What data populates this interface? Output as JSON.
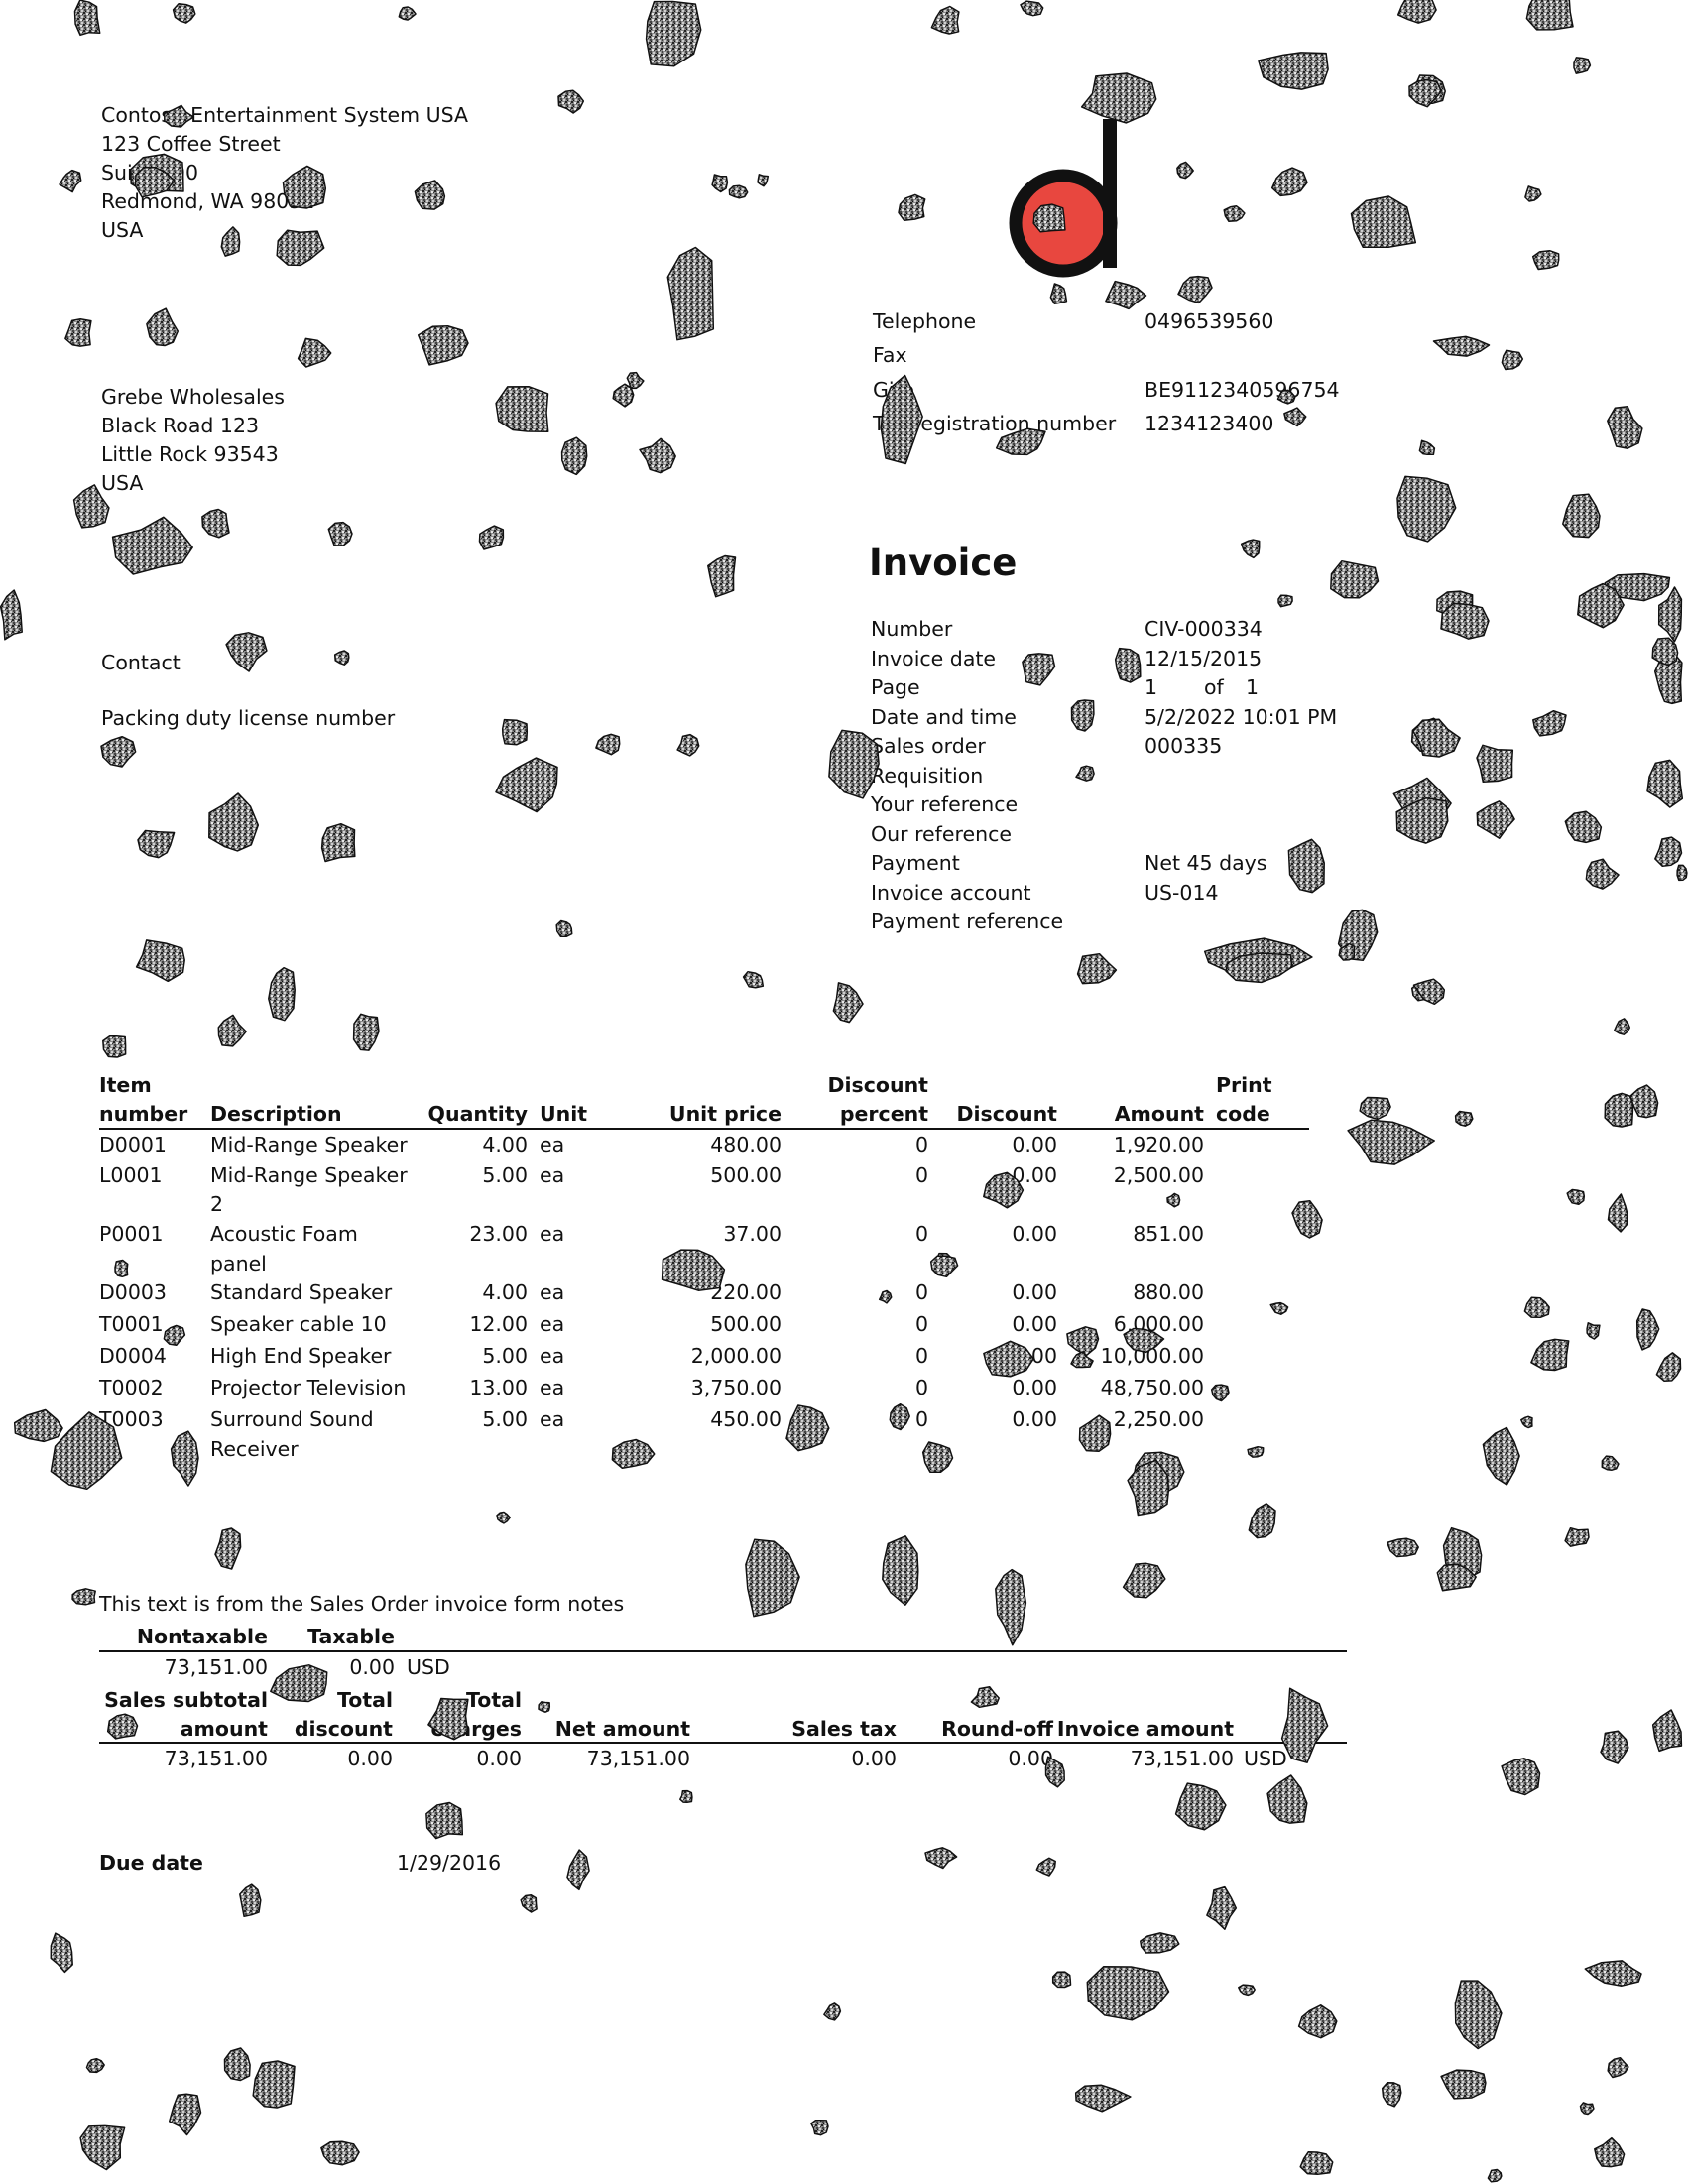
{
  "company": {
    "lines": [
      "Contoso Entertainment System USA",
      "123 Coffee Street",
      "Suite 300",
      "Redmond, WA 98052",
      "USA"
    ]
  },
  "customer": {
    "lines": [
      "Grebe Wholesales",
      "Black Road 123",
      "Little Rock 93543",
      "USA"
    ]
  },
  "contact_label": "Contact",
  "license_label": "Packing duty license number",
  "logo": {
    "name": "company-logo",
    "accent": "#e8473f",
    "stroke": "#111111"
  },
  "company_contact": {
    "labels": [
      "Telephone",
      "Fax",
      "Giro",
      "Tax registration number"
    ],
    "values": [
      "0496539560",
      "",
      "BE9112340596754",
      "1234123400"
    ]
  },
  "invoice": {
    "title": "Invoice",
    "labels": [
      "Number",
      "Invoice date",
      "Page",
      "Date and time",
      "Sales order",
      "Requisition",
      "Your reference",
      "Our reference",
      "Payment",
      "Invoice account",
      "Payment reference"
    ],
    "values": [
      "CIV-000334",
      "12/15/2015",
      "",
      "5/2/2022 10:01 PM",
      "000335",
      "",
      "",
      "",
      "Net 45 days",
      "US-014",
      ""
    ],
    "page_current": "1",
    "page_of": "of",
    "page_total": "1"
  },
  "lines_table": {
    "headers": {
      "item_1": "Item",
      "item_2": "number",
      "description": "Description",
      "quantity": "Quantity",
      "unit": "Unit",
      "unit_price": "Unit price",
      "disc_pct_1": "Discount",
      "disc_pct_2": "percent",
      "discount": "Discount",
      "amount": "Amount",
      "print_1": "Print",
      "print_2": "code"
    },
    "rows": [
      {
        "item": "D0001",
        "desc": "Mid-Range Speaker",
        "desc2": "",
        "qty": "4.00",
        "unit": "ea",
        "price": "480.00",
        "pct": "0",
        "disc": "0.00",
        "amount": "1,920.00"
      },
      {
        "item": "L0001",
        "desc": "Mid-Range Speaker",
        "desc2": "2",
        "qty": "5.00",
        "unit": "ea",
        "price": "500.00",
        "pct": "0",
        "disc": "0.00",
        "amount": "2,500.00"
      },
      {
        "item": "P0001",
        "desc": "Acoustic Foam",
        "desc2": "panel",
        "qty": "23.00",
        "unit": "ea",
        "price": "37.00",
        "pct": "0",
        "disc": "0.00",
        "amount": "851.00"
      },
      {
        "item": "D0003",
        "desc": "Standard Speaker",
        "desc2": "",
        "qty": "4.00",
        "unit": "ea",
        "price": "220.00",
        "pct": "0",
        "disc": "0.00",
        "amount": "880.00"
      },
      {
        "item": "T0001",
        "desc": "Speaker cable 10",
        "desc2": "",
        "qty": "12.00",
        "unit": "ea",
        "price": "500.00",
        "pct": "0",
        "disc": "0.00",
        "amount": "6,000.00"
      },
      {
        "item": "D0004",
        "desc": "High End Speaker",
        "desc2": "",
        "qty": "5.00",
        "unit": "ea",
        "price": "2,000.00",
        "pct": "0",
        "disc": "0.00",
        "amount": "10,000.00"
      },
      {
        "item": "T0002",
        "desc": "Projector Television",
        "desc2": "",
        "qty": "13.00",
        "unit": "ea",
        "price": "3,750.00",
        "pct": "0",
        "disc": "0.00",
        "amount": "48,750.00"
      },
      {
        "item": "T0003",
        "desc": "Surround Sound",
        "desc2": "Receiver",
        "qty": "5.00",
        "unit": "ea",
        "price": "450.00",
        "pct": "0",
        "disc": "0.00",
        "amount": "2,250.00"
      }
    ]
  },
  "notes": "This text is from the Sales Order invoice form notes",
  "tax_summary": {
    "nontaxable_label": "Nontaxable",
    "taxable_label": "Taxable",
    "nontaxable": "73,151.00",
    "taxable": "0.00",
    "currency": "USD"
  },
  "totals": {
    "subtotal_label_1": "Sales subtotal",
    "subtotal_label_2": "amount",
    "total_discount_1": "Total",
    "total_discount_2": "discount",
    "total_charges_1": "Total",
    "total_charges_2": "charges",
    "net_amount_label": "Net amount",
    "sales_tax_label": "Sales tax",
    "round_off_label": "Round-off",
    "invoice_amount_label": "Invoice amount",
    "subtotal": "73,151.00",
    "total_discount": "0.00",
    "total_charges": "0.00",
    "net_amount": "73,151.00",
    "sales_tax": "0.00",
    "round_off": "0.00",
    "invoice_amount": "73,151.00",
    "currency": "USD"
  },
  "due": {
    "label": "Due date",
    "value": "1/29/2016"
  }
}
